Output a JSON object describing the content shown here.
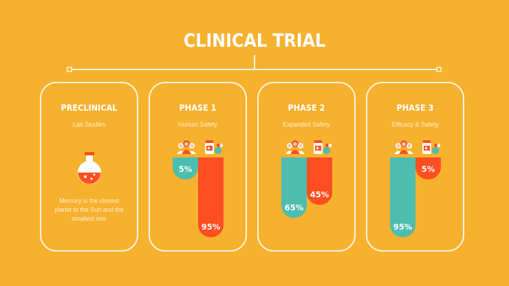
{
  "title": "CLINICAL TRIAL",
  "colors": {
    "background": "#F6B12F",
    "human_bar": "#4DBDB0",
    "drug_bar": "#FF4E21",
    "outline": "#FFF4DC"
  },
  "preclinical": {
    "title": "PRECLINICAL",
    "subtitle": "Lab Studies",
    "description": "Mercury is the closest planet to the Sun and the smallest one",
    "icon": "flask-icon"
  },
  "phases": [
    {
      "title": "PHASE 1",
      "subtitle": "Human Safety",
      "human_label": "5%",
      "drug_label": "95%",
      "human_value": 5,
      "drug_value": 95
    },
    {
      "title": "PHASE 2",
      "subtitle": "Expanded Safety",
      "human_label": "65%",
      "drug_label": "45%",
      "human_value": 65,
      "drug_value": 45
    },
    {
      "title": "PHASE 3",
      "subtitle": "Efficacy & Safety",
      "human_label": "95%",
      "drug_label": "5%",
      "human_value": 95,
      "drug_value": 5
    }
  ],
  "icons": {
    "people": "people-group-icon",
    "drug": "medicine-bottle-pills-icon"
  }
}
